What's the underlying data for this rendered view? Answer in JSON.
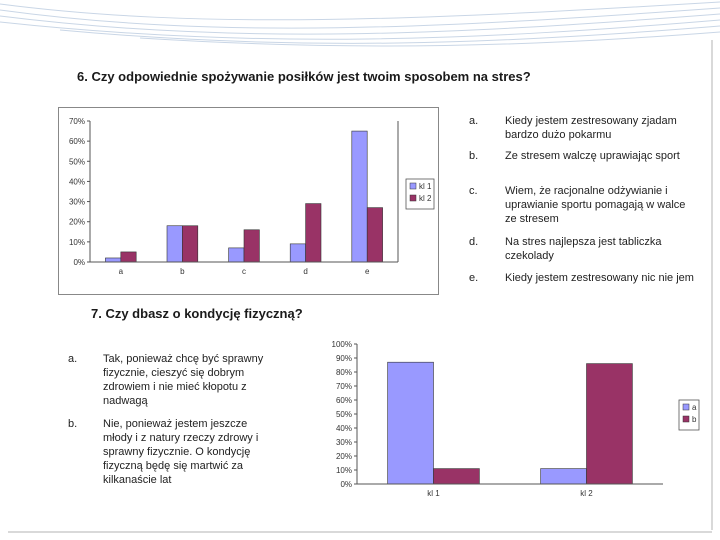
{
  "slide": {
    "q6": {
      "title": "6. Czy odpowiednie spożywanie posiłków jest twoim sposobem na stres?",
      "options": [
        {
          "letter": "a.",
          "text": "Kiedy jestem zestresowany zjadam bardzo dużo pokarmu"
        },
        {
          "letter": "b.",
          "text": "Ze stresem walczę uprawiając sport"
        },
        {
          "letter": "c.",
          "text": "Wiem, że racjonalne odżywianie i uprawianie sportu pomagają w walce ze stresem"
        },
        {
          "letter": "d.",
          "text": "Na stres najlepsza jest tabliczka czekolady"
        },
        {
          "letter": "e.",
          "text": "Kiedy jestem zestresowany nic nie jem"
        }
      ]
    },
    "q7": {
      "title": "7. Czy dbasz o kondycję fizyczną?",
      "options": [
        {
          "letter": "a.",
          "text": "Tak, ponieważ chcę być sprawny fizycznie, cieszyć się dobrym zdrowiem i nie mieć kłopotu z nadwagą"
        },
        {
          "letter": "b.",
          "text": "Nie, ponieważ jestem jeszcze młody i z natury rzeczy zdrowy i sprawny fizycznie. O kondycję fizyczną będę się martwić za kilkanaście lat"
        }
      ]
    }
  },
  "chart_data": [
    {
      "type": "bar",
      "categories": [
        "a",
        "b",
        "c",
        "d",
        "e"
      ],
      "series": [
        {
          "name": "kl 1",
          "values": [
            2,
            18,
            7,
            9,
            65
          ],
          "color": "#9999ff"
        },
        {
          "name": "kl 2",
          "values": [
            5,
            18,
            16,
            29,
            27
          ],
          "color": "#993366"
        }
      ],
      "yticks": [
        "0%",
        "10%",
        "20%",
        "30%",
        "40%",
        "50%",
        "60%",
        "70%"
      ],
      "ylim": [
        0,
        70
      ],
      "grid": false,
      "legend": "right"
    },
    {
      "type": "bar",
      "categories": [
        "kl 1",
        "kl 2"
      ],
      "series": [
        {
          "name": "a",
          "values": [
            87,
            11
          ],
          "color": "#9999ff"
        },
        {
          "name": "b",
          "values": [
            11,
            86
          ],
          "color": "#993366"
        }
      ],
      "yticks": [
        "0%",
        "10%",
        "20%",
        "30%",
        "40%",
        "50%",
        "60%",
        "70%",
        "80%",
        "90%",
        "100%"
      ],
      "ylim": [
        0,
        100
      ],
      "grid": false,
      "legend": "right"
    }
  ]
}
